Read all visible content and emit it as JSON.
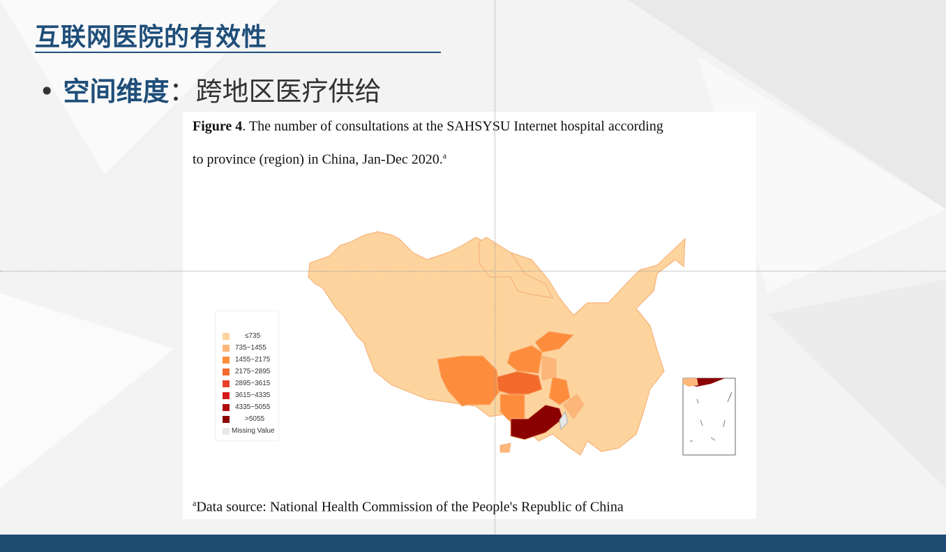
{
  "slide": {
    "title": "互联网医院的有效性",
    "bullet_bold": "空间维度",
    "bullet_rest": "：跨地区医疗供给"
  },
  "figure": {
    "caption_bold": "Figure 4",
    "caption_line1": ". The number of consultations at the SAHSYSU Internet hospital according",
    "caption_line2": "to province (region) in China, Jan-Dec 2020.",
    "caption_sup": "a",
    "source_sup": "a",
    "source": "Data source: National Health Commission of the People's Republic of China"
  },
  "legend": [
    {
      "label": "≤735",
      "color": "#fdd49e"
    },
    {
      "label": "735~1455",
      "color": "#fdb77a"
    },
    {
      "label": "1455~2175",
      "color": "#fd8d3c"
    },
    {
      "label": "2175~2895",
      "color": "#f36b2c"
    },
    {
      "label": "2895~3615",
      "color": "#e8412a"
    },
    {
      "label": "3615~4335",
      "color": "#d7191c"
    },
    {
      "label": "4335~5055",
      "color": "#b00d0d"
    },
    {
      "label": ">5055",
      "color": "#8b0000"
    },
    {
      "label": "Missing Value",
      "color": "#e8e8e8"
    }
  ],
  "highlighted_regions": [
    {
      "region": "Guangdong",
      "class": ">5055"
    },
    {
      "region": "Hubei",
      "class": "2175~2895"
    },
    {
      "region": "Sichuan",
      "class": "1455~2175"
    },
    {
      "region": "Hunan",
      "class": "1455~2175"
    },
    {
      "region": "Shandong",
      "class": "1455~2175"
    },
    {
      "region": "Henan",
      "class": "1455~2175"
    },
    {
      "region": "Jiangxi",
      "class": "1455~2175"
    },
    {
      "region": "Taiwan",
      "class": "Missing Value"
    }
  ]
}
